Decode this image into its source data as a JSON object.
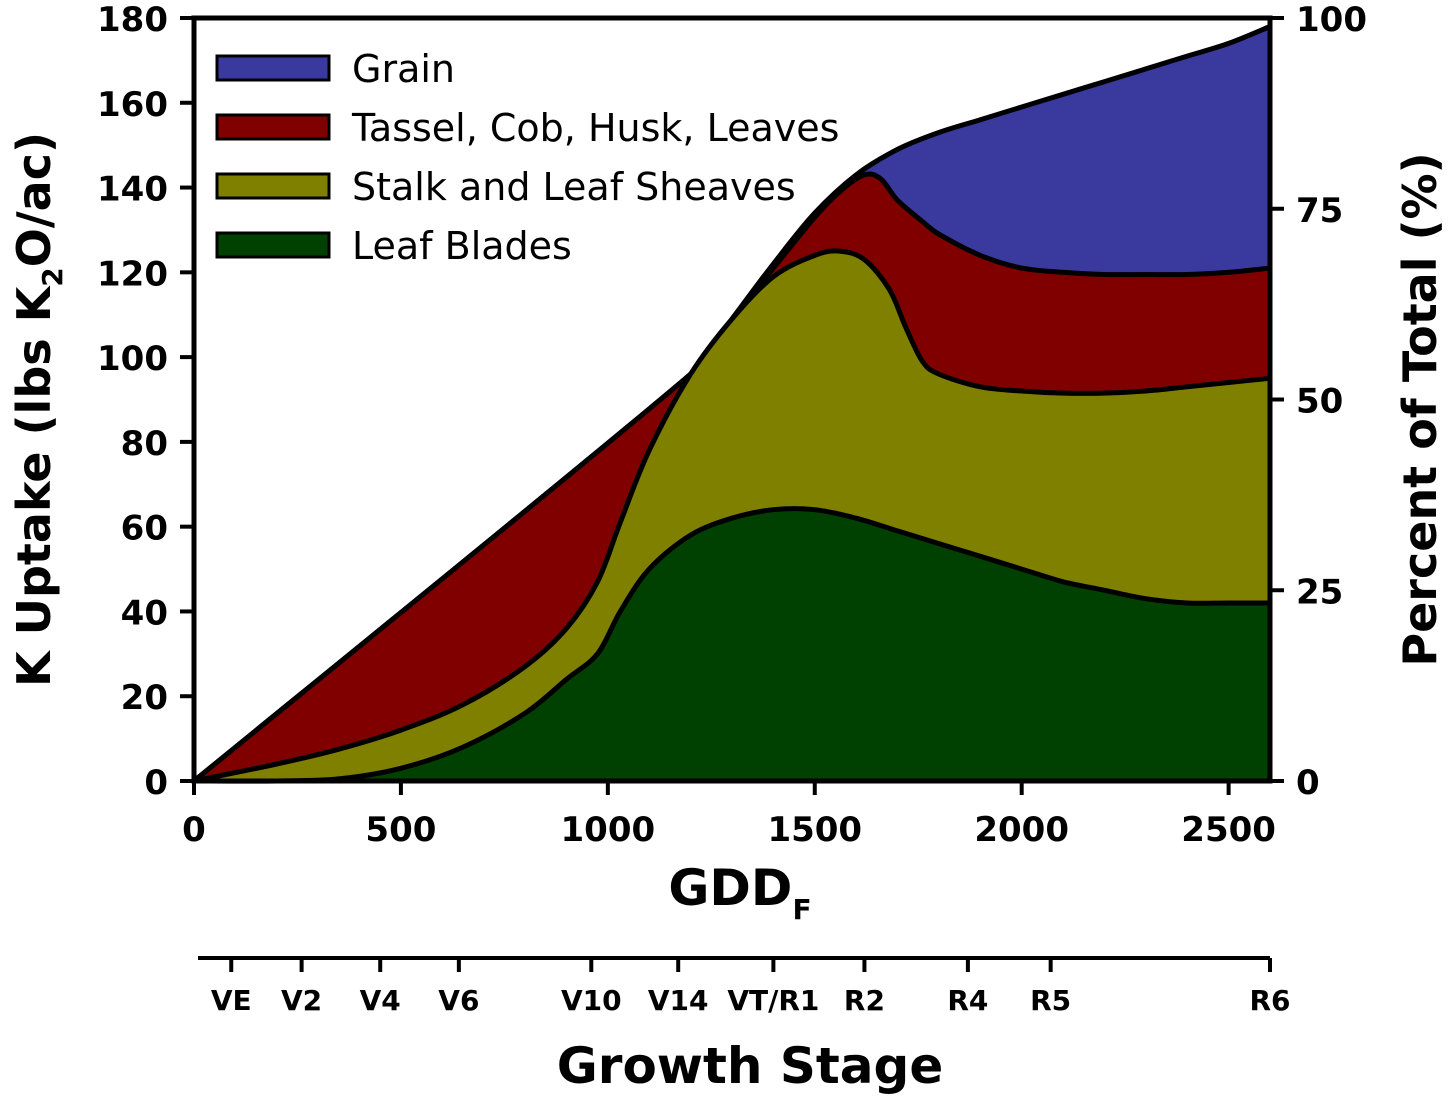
{
  "colors": {
    "grain": "#3a3a9e",
    "tassel": "#800000",
    "stalk": "#808000",
    "blades": "#004000",
    "outline": "#000000"
  },
  "chart_data": {
    "type": "area",
    "stacked": true,
    "xlabel": "GDD",
    "xlabel_sub": "F",
    "ylabel_pre": "K Uptake (lbs K",
    "ylabel_sub": "2",
    "ylabel_post": "O/ac)",
    "y2label": "Percent of Total (%)",
    "stage_label": "Growth Stage",
    "xlim": [
      0,
      2600
    ],
    "ylim": [
      0,
      180
    ],
    "x_ticks": [
      0,
      500,
      1000,
      1500,
      2000,
      2500
    ],
    "y_ticks": [
      0,
      20,
      40,
      60,
      80,
      100,
      120,
      140,
      160,
      180
    ],
    "y2_ticks": [
      0,
      25,
      50,
      75,
      100
    ],
    "legend": [
      "Grain",
      "Tassel, Cob, Husk, Leaves",
      "Stalk and Leaf Sheaves",
      "Leaf Blades"
    ],
    "legend_position": "top-left",
    "stages": [
      {
        "label": "VE",
        "gdd": 90
      },
      {
        "label": "V2",
        "gdd": 260
      },
      {
        "label": "V4",
        "gdd": 450
      },
      {
        "label": "V6",
        "gdd": 640
      },
      {
        "label": "V10",
        "gdd": 960
      },
      {
        "label": "V14",
        "gdd": 1170
      },
      {
        "label": "VT/R1",
        "gdd": 1400
      },
      {
        "label": "R2",
        "gdd": 1620
      },
      {
        "label": "R4",
        "gdd": 1870
      },
      {
        "label": "R5",
        "gdd": 2070
      },
      {
        "label": "R6",
        "gdd": 2600
      }
    ],
    "series": [
      {
        "name": "Leaf Blades",
        "color_key": "blades",
        "x": [
          0,
          200,
          350,
          500,
          650,
          800,
          900,
          975,
          1030,
          1100,
          1200,
          1300,
          1400,
          1500,
          1600,
          1700,
          1800,
          1900,
          2000,
          2100,
          2200,
          2300,
          2400,
          2500,
          2600
        ],
        "y": [
          0,
          0,
          0.5,
          3,
          8,
          16,
          24,
          30,
          40,
          50,
          58,
          62,
          64,
          64,
          62,
          59,
          56,
          53,
          50,
          47,
          45,
          43,
          42,
          42,
          42
        ]
      },
      {
        "name": "Stalk and Leaf Sheaves",
        "color_key": "stalk",
        "x": [
          0,
          200,
          350,
          500,
          650,
          800,
          900,
          975,
          1030,
          1100,
          1200,
          1300,
          1400,
          1500,
          1560,
          1620,
          1680,
          1720,
          1760,
          1800,
          1900,
          2000,
          2100,
          2200,
          2300,
          2400,
          2500,
          2600
        ],
        "y": [
          0,
          4,
          7.5,
          12,
          18,
          27,
          36,
          47,
          61,
          78,
          96,
          109,
          119,
          124,
          125,
          123,
          116,
          107,
          99,
          96,
          93,
          92,
          91.5,
          91.5,
          92,
          93,
          94,
          95
        ]
      },
      {
        "name": "Tassel, Cob, Husk, Leaves",
        "color_key": "tassel",
        "x": [
          0,
          1200,
          1300,
          1400,
          1500,
          1560,
          1620,
          1660,
          1700,
          1760,
          1800,
          1900,
          2000,
          2100,
          2200,
          2300,
          2400,
          2500,
          2600
        ],
        "y": [
          0,
          96,
          109,
          121,
          133,
          139,
          143,
          142,
          137,
          132,
          129,
          124,
          121,
          120,
          119.5,
          119.5,
          119.5,
          120,
          121
        ]
      },
      {
        "name": "Grain",
        "color_key": "grain",
        "x": [
          0,
          1200,
          1300,
          1400,
          1500,
          1600,
          1700,
          1800,
          1900,
          2000,
          2100,
          2200,
          2300,
          2400,
          2500,
          2600
        ],
        "y": [
          0,
          96,
          109,
          122,
          134,
          143,
          149,
          153,
          156,
          159,
          162,
          165,
          168,
          171,
          174,
          178
        ]
      }
    ]
  }
}
